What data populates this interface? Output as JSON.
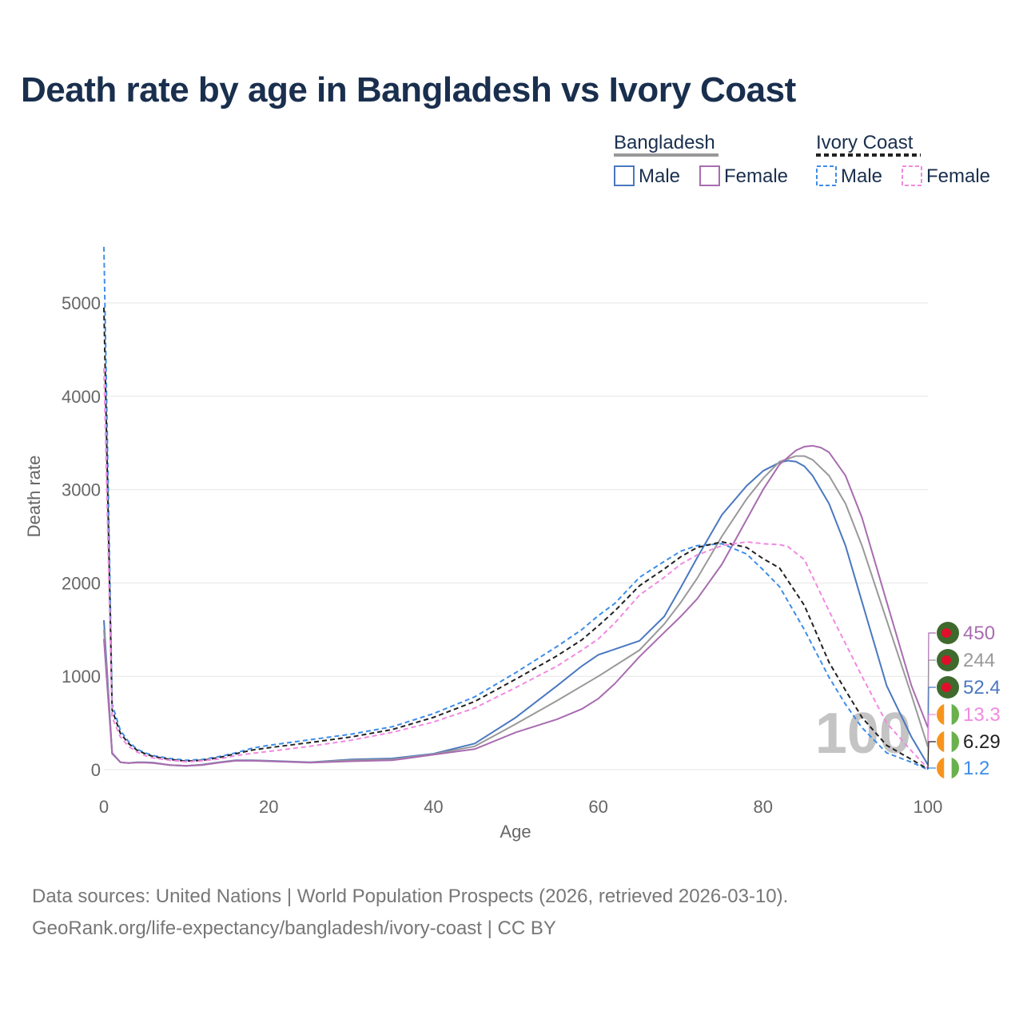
{
  "chart_data": {
    "type": "line",
    "title": "Death rate by age in Bangladesh vs Ivory Coast",
    "xlabel": "Age",
    "ylabel": "Death rate",
    "xlim": [
      0,
      100
    ],
    "ylim": [
      0,
      5000
    ],
    "x_ticks": [
      "0",
      "20",
      "40",
      "60",
      "80",
      "100"
    ],
    "y_ticks": [
      "0",
      "1000",
      "2000",
      "3000",
      "4000",
      "5000"
    ],
    "watermark": "100",
    "legend": {
      "groups": [
        {
          "country": "Bangladesh",
          "style": "solid",
          "entries": [
            "Male",
            "Female"
          ]
        },
        {
          "country": "Ivory Coast",
          "style": "dashed",
          "entries": [
            "Male",
            "Female"
          ]
        }
      ]
    },
    "series": [
      {
        "name": "Bangladesh Male",
        "country": "Bangladesh",
        "sex": "Male",
        "color": "#4a78c0",
        "dash": false,
        "x": [
          0,
          1,
          2,
          3,
          4,
          5,
          6,
          8,
          10,
          12,
          14,
          16,
          18,
          20,
          25,
          30,
          35,
          40,
          45,
          50,
          55,
          58,
          60,
          62,
          65,
          68,
          70,
          72,
          75,
          78,
          80,
          82,
          83,
          84,
          85,
          86,
          88,
          90,
          92,
          95,
          98,
          100
        ],
        "y": [
          1600,
          180,
          80,
          70,
          80,
          80,
          75,
          50,
          40,
          55,
          80,
          100,
          100,
          95,
          80,
          110,
          120,
          170,
          280,
          560,
          900,
          1110,
          1230,
          1290,
          1380,
          1640,
          1950,
          2270,
          2730,
          3040,
          3200,
          3290,
          3310,
          3300,
          3250,
          3150,
          2850,
          2400,
          1800,
          900,
          350,
          52
        ]
      },
      {
        "name": "Bangladesh Both",
        "country": "Bangladesh",
        "sex": "Both",
        "color": "#999999",
        "dash": false,
        "x": [
          0,
          1,
          2,
          3,
          4,
          5,
          6,
          8,
          10,
          12,
          14,
          16,
          18,
          20,
          25,
          30,
          35,
          40,
          45,
          50,
          55,
          60,
          65,
          68,
          70,
          72,
          75,
          78,
          80,
          82,
          84,
          85,
          86,
          88,
          90,
          92,
          95,
          98,
          100
        ],
        "y": [
          1500,
          175,
          80,
          70,
          78,
          78,
          72,
          50,
          40,
          52,
          78,
          98,
          98,
          92,
          78,
          100,
          110,
          165,
          250,
          490,
          740,
          1000,
          1280,
          1560,
          1790,
          2050,
          2500,
          2900,
          3120,
          3300,
          3360,
          3360,
          3320,
          3150,
          2850,
          2400,
          1600,
          800,
          244
        ]
      },
      {
        "name": "Bangladesh Female",
        "country": "Bangladesh",
        "sex": "Female",
        "color": "#a86cb0",
        "dash": false,
        "x": [
          0,
          1,
          2,
          3,
          4,
          5,
          6,
          8,
          10,
          12,
          14,
          16,
          18,
          20,
          25,
          30,
          35,
          40,
          45,
          50,
          55,
          58,
          60,
          62,
          65,
          68,
          70,
          72,
          75,
          78,
          80,
          82,
          84,
          85,
          86,
          87,
          88,
          90,
          92,
          95,
          98,
          100
        ],
        "y": [
          1400,
          170,
          80,
          70,
          75,
          75,
          70,
          50,
          40,
          50,
          75,
          95,
          95,
          90,
          75,
          90,
          100,
          160,
          220,
          400,
          540,
          650,
          760,
          920,
          1210,
          1470,
          1640,
          1830,
          2200,
          2680,
          3000,
          3270,
          3420,
          3460,
          3470,
          3450,
          3400,
          3150,
          2700,
          1800,
          900,
          450
        ]
      },
      {
        "name": "Ivory Coast Male",
        "country": "Ivory Coast",
        "sex": "Male",
        "color": "#3d8de8",
        "dash": true,
        "x": [
          0,
          1,
          2,
          3,
          4,
          5,
          6,
          8,
          10,
          12,
          14,
          16,
          18,
          20,
          25,
          30,
          35,
          40,
          45,
          50,
          55,
          58,
          60,
          62,
          65,
          68,
          70,
          72,
          75,
          78,
          80,
          82,
          85,
          88,
          90,
          92,
          95,
          98,
          100
        ],
        "y": [
          5600,
          700,
          420,
          300,
          220,
          180,
          150,
          120,
          100,
          110,
          140,
          180,
          230,
          260,
          320,
          380,
          460,
          600,
          780,
          1040,
          1320,
          1500,
          1650,
          1780,
          2060,
          2230,
          2340,
          2400,
          2420,
          2310,
          2140,
          1960,
          1500,
          990,
          700,
          450,
          180,
          80,
          1.2
        ]
      },
      {
        "name": "Ivory Coast Both",
        "country": "Ivory Coast",
        "sex": "Both",
        "color": "#222222",
        "dash": true,
        "x": [
          0,
          1,
          2,
          3,
          4,
          5,
          6,
          8,
          10,
          12,
          14,
          16,
          18,
          20,
          25,
          30,
          35,
          40,
          45,
          50,
          55,
          58,
          60,
          62,
          65,
          68,
          70,
          72,
          75,
          78,
          80,
          82,
          85,
          88,
          90,
          92,
          95,
          98,
          100
        ],
        "y": [
          4950,
          640,
          390,
          280,
          210,
          170,
          140,
          110,
          92,
          100,
          130,
          170,
          210,
          235,
          290,
          350,
          430,
          560,
          730,
          970,
          1220,
          1390,
          1540,
          1700,
          1970,
          2150,
          2280,
          2380,
          2440,
          2380,
          2260,
          2160,
          1760,
          1150,
          850,
          560,
          260,
          110,
          6.29
        ]
      },
      {
        "name": "Ivory Coast Female",
        "country": "Ivory Coast",
        "sex": "Female",
        "color": "#f08ae0",
        "dash": true,
        "x": [
          0,
          1,
          2,
          3,
          4,
          5,
          6,
          8,
          10,
          12,
          14,
          16,
          18,
          20,
          25,
          30,
          35,
          40,
          45,
          50,
          55,
          58,
          60,
          62,
          65,
          68,
          70,
          72,
          75,
          78,
          80,
          82,
          83,
          85,
          88,
          90,
          92,
          95,
          98,
          100
        ],
        "y": [
          4300,
          560,
          350,
          250,
          190,
          150,
          125,
          100,
          85,
          95,
          115,
          150,
          175,
          195,
          250,
          315,
          400,
          510,
          660,
          880,
          1110,
          1280,
          1400,
          1570,
          1870,
          2060,
          2200,
          2300,
          2400,
          2440,
          2420,
          2410,
          2390,
          2250,
          1700,
          1350,
          1000,
          500,
          200,
          13.3
        ]
      }
    ],
    "end_labels": [
      {
        "series": "Bangladesh Female",
        "value": "450",
        "color": "#a86cb0",
        "flag": "bangladesh"
      },
      {
        "series": "Bangladesh Both",
        "value": "244",
        "color": "#999999",
        "flag": "bangladesh"
      },
      {
        "series": "Bangladesh Male",
        "value": "52.4",
        "color": "#4a78c0",
        "flag": "bangladesh"
      },
      {
        "series": "Ivory Coast Female",
        "value": "13.3",
        "color": "#f08ae0",
        "flag": "ivory-coast"
      },
      {
        "series": "Ivory Coast Both",
        "value": "6.29",
        "color": "#222222",
        "flag": "ivory-coast"
      },
      {
        "series": "Ivory Coast Male",
        "value": "1.2",
        "color": "#3d8de8",
        "flag": "ivory-coast"
      }
    ]
  },
  "footer": {
    "line1": "Data sources: United Nations | World Population Prospects (2026, retrieved 2026-03-10).",
    "line2": "GeoRank.org/life-expectancy/bangladesh/ivory-coast | CC BY"
  }
}
